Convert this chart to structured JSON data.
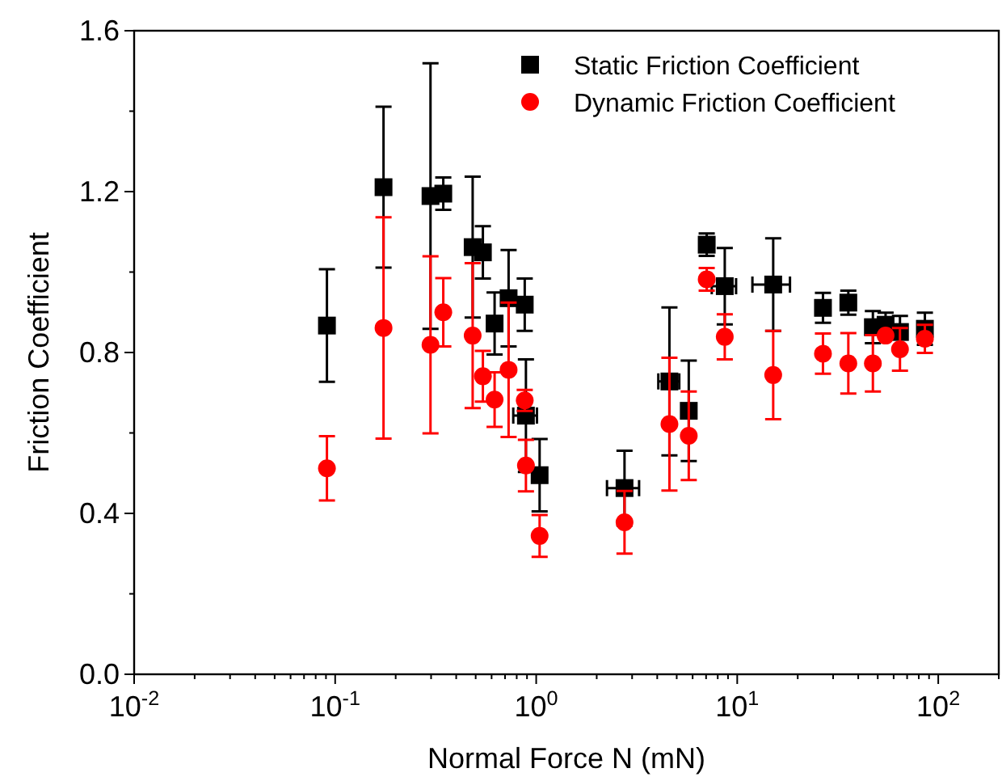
{
  "chart_data": {
    "type": "scatter",
    "xlabel": "Normal Force N (mN)",
    "ylabel": "Friction Coefficient",
    "log": "x",
    "xlim": [
      0.01,
      200
    ],
    "ylim": [
      0,
      1.6
    ],
    "xticks": [
      {
        "value": 0.01,
        "label": "10$^{-2}$"
      },
      {
        "value": 0.02,
        "label": null
      },
      {
        "value": 0.03,
        "label": null
      },
      {
        "value": 0.04,
        "label": null
      },
      {
        "value": 0.05,
        "label": null
      },
      {
        "value": 0.06,
        "label": null
      },
      {
        "value": 0.07,
        "label": null
      },
      {
        "value": 0.08,
        "label": null
      },
      {
        "value": 0.09,
        "label": null
      },
      {
        "value": 0.1,
        "label": "10$^{-1}$"
      },
      {
        "value": 0.2,
        "label": null
      },
      {
        "value": 0.3,
        "label": null
      },
      {
        "value": 0.4,
        "label": null
      },
      {
        "value": 0.5,
        "label": null
      },
      {
        "value": 0.6,
        "label": null
      },
      {
        "value": 0.7,
        "label": null
      },
      {
        "value": 0.8,
        "label": null
      },
      {
        "value": 0.9,
        "label": null
      },
      {
        "value": 1,
        "label": "10$^{0}$"
      },
      {
        "value": 2,
        "label": null
      },
      {
        "value": 3,
        "label": null
      },
      {
        "value": 4,
        "label": null
      },
      {
        "value": 5,
        "label": null
      },
      {
        "value": 6,
        "label": null
      },
      {
        "value": 7,
        "label": null
      },
      {
        "value": 8,
        "label": null
      },
      {
        "value": 9,
        "label": null
      },
      {
        "value": 10,
        "label": "10$^{1}$"
      },
      {
        "value": 20,
        "label": null
      },
      {
        "value": 30,
        "label": null
      },
      {
        "value": 40,
        "label": null
      },
      {
        "value": 50,
        "label": null
      },
      {
        "value": 60,
        "label": null
      },
      {
        "value": 70,
        "label": null
      },
      {
        "value": 80,
        "label": null
      },
      {
        "value": 90,
        "label": null
      },
      {
        "value": 100,
        "label": "10$^{2}$"
      },
      {
        "value": 200,
        "label": null
      }
    ],
    "yticks": [
      {
        "value": 0,
        "label": "0.0"
      },
      {
        "value": 0.2,
        "label": null
      },
      {
        "value": 0.4,
        "label": "0.4"
      },
      {
        "value": 0.6,
        "label": null
      },
      {
        "value": 0.8,
        "label": "0.8"
      },
      {
        "value": 1.0,
        "label": null
      },
      {
        "value": 1.2,
        "label": "1.2"
      },
      {
        "value": 1.4,
        "label": null
      },
      {
        "value": 1.6,
        "label": "1.6"
      }
    ],
    "grid": false,
    "legend": "top right",
    "series": [
      {
        "name": "Static Friction Coefficient",
        "color": "#000000",
        "marker": "square",
        "x": [
          0.091,
          0.174,
          0.298,
          0.345,
          0.483,
          0.543,
          0.621,
          0.729,
          0.877,
          0.889,
          1.04,
          2.75,
          4.6,
          5.74,
          7.05,
          8.67,
          15.1,
          26.7,
          35.7,
          47.3,
          54.7,
          64.5,
          85.8
        ],
        "values": [
          0.867,
          1.211,
          1.189,
          1.195,
          1.062,
          1.049,
          0.872,
          0.935,
          0.919,
          0.643,
          0.495,
          0.463,
          0.728,
          0.655,
          1.068,
          0.965,
          0.969,
          0.911,
          0.924,
          0.863,
          0.869,
          0.851,
          0.859
        ],
        "errors": [
          0.14,
          0.2,
          0.33,
          0.04,
          0.175,
          0.065,
          0.077,
          0.12,
          0.065,
          0.14,
          0.09,
          0.093,
          0.184,
          0.125,
          0.028,
          0.095,
          0.115,
          0.037,
          0.03,
          0.04,
          0.03,
          0.04,
          0.04
        ],
        "xerrors": [
          null,
          null,
          null,
          0.015,
          null,
          null,
          null,
          null,
          null,
          0.12,
          null,
          0.5,
          0.55,
          null,
          0.3,
          1.2,
          3.2,
          null,
          null,
          null,
          null,
          null,
          null
        ]
      },
      {
        "name": "Dynamic Friction Coefficient",
        "color": "#ff0000",
        "marker": "circle",
        "x": [
          0.091,
          0.174,
          0.298,
          0.345,
          0.483,
          0.543,
          0.621,
          0.729,
          0.877,
          0.889,
          1.04,
          2.75,
          4.6,
          5.74,
          7.05,
          8.67,
          15.1,
          26.7,
          35.7,
          47.3,
          54.7,
          64.5,
          85.8
        ],
        "values": [
          0.512,
          0.861,
          0.819,
          0.9,
          0.842,
          0.741,
          0.683,
          0.757,
          0.681,
          0.519,
          0.344,
          0.378,
          0.622,
          0.593,
          0.982,
          0.839,
          0.744,
          0.797,
          0.773,
          0.773,
          0.842,
          0.808,
          0.834
        ],
        "errors": [
          0.08,
          0.275,
          0.22,
          0.085,
          0.18,
          0.063,
          0.068,
          0.167,
          0.026,
          0.064,
          0.052,
          0.078,
          0.165,
          0.11,
          0.028,
          0.056,
          0.11,
          0.05,
          0.075,
          0.07,
          null,
          0.053,
          0.035
        ]
      }
    ]
  }
}
